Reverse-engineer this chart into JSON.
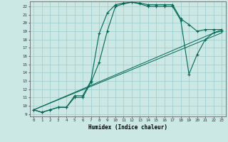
{
  "xlabel": "Humidex (Indice chaleur)",
  "bg_color": "#cce8e4",
  "grid_color": "#99cccc",
  "line_color": "#006655",
  "xlim": [
    -0.5,
    23.5
  ],
  "ylim": [
    8.7,
    22.6
  ],
  "yticks": [
    9,
    10,
    11,
    12,
    13,
    14,
    15,
    16,
    17,
    18,
    19,
    20,
    21,
    22
  ],
  "xticks": [
    0,
    1,
    2,
    3,
    4,
    5,
    6,
    7,
    8,
    9,
    10,
    11,
    12,
    13,
    14,
    15,
    16,
    17,
    18,
    19,
    20,
    21,
    22,
    23
  ],
  "line1_x": [
    0,
    1,
    2,
    3,
    4,
    5,
    6,
    7,
    8,
    9,
    10,
    11,
    12,
    13,
    14,
    15,
    16,
    17,
    18,
    19,
    20,
    21,
    22,
    23
  ],
  "line1_y": [
    9.5,
    9.2,
    9.5,
    9.8,
    9.8,
    11.2,
    11.2,
    13.0,
    18.7,
    21.2,
    22.2,
    22.4,
    22.5,
    22.4,
    22.2,
    22.2,
    22.2,
    22.2,
    20.5,
    19.8,
    19.0,
    19.2,
    19.2,
    19.2
  ],
  "line2_x": [
    0,
    1,
    2,
    3,
    4,
    5,
    6,
    7,
    8,
    9,
    10,
    11,
    12,
    13,
    14,
    15,
    16,
    17,
    18,
    19,
    20,
    21,
    22,
    23
  ],
  "line2_y": [
    9.5,
    9.2,
    9.5,
    9.8,
    9.8,
    11.0,
    11.0,
    12.8,
    15.2,
    19.0,
    22.0,
    22.3,
    22.5,
    22.3,
    22.0,
    22.0,
    22.0,
    22.0,
    20.3,
    13.8,
    16.2,
    18.0,
    18.8,
    19.0
  ],
  "line3_x": [
    0,
    23
  ],
  "line3_y": [
    9.5,
    19.2
  ],
  "line4_x": [
    0,
    23
  ],
  "line4_y": [
    9.5,
    18.8
  ]
}
